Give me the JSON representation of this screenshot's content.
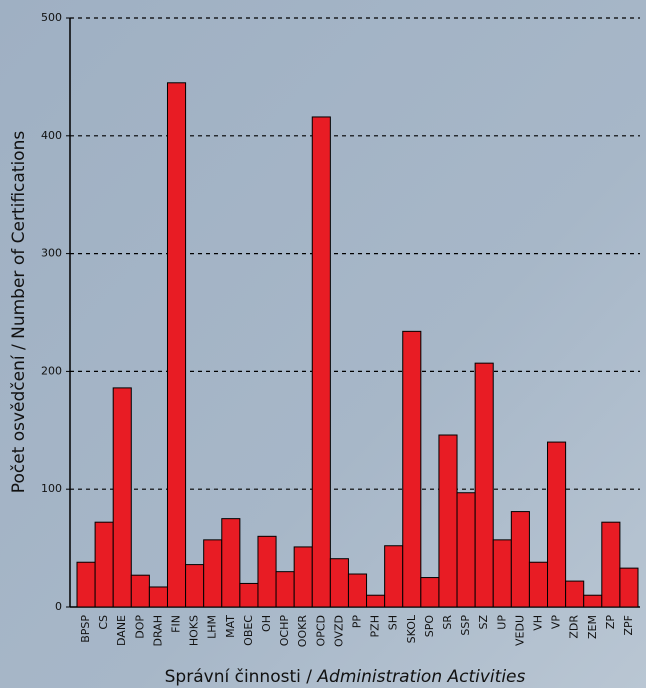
{
  "chart_data": {
    "type": "bar",
    "ylabel": "Počet osvědčení / Number of Certifications",
    "xlabel": {
      "cz": "Správní činnosti /",
      "en": "Administration Activities"
    },
    "categories": [
      "BPSP",
      "CS",
      "DANE",
      "DOP",
      "DRAH",
      "FIN",
      "HOKS",
      "LHM",
      "MAT",
      "OBEC",
      "OH",
      "OCHP",
      "OOKR",
      "OPCD",
      "OVZD",
      "PP",
      "PZH",
      "SH",
      "SKOL",
      "SPO",
      "SR",
      "SSP",
      "SZ",
      "UP",
      "VEDU",
      "VH",
      "VP",
      "ZDR",
      "ZEM",
      "ZP",
      "ZPF"
    ],
    "values": [
      38,
      72,
      186,
      27,
      17,
      445,
      36,
      57,
      75,
      20,
      60,
      30,
      51,
      416,
      41,
      28,
      10,
      52,
      234,
      25,
      146,
      97,
      207,
      57,
      81,
      38,
      140,
      22,
      10,
      72,
      33
    ],
    "color": "#e81c24",
    "ylim": [
      0,
      500
    ],
    "yticks": [
      0,
      100,
      200,
      300,
      400,
      500
    ],
    "grid": true
  }
}
